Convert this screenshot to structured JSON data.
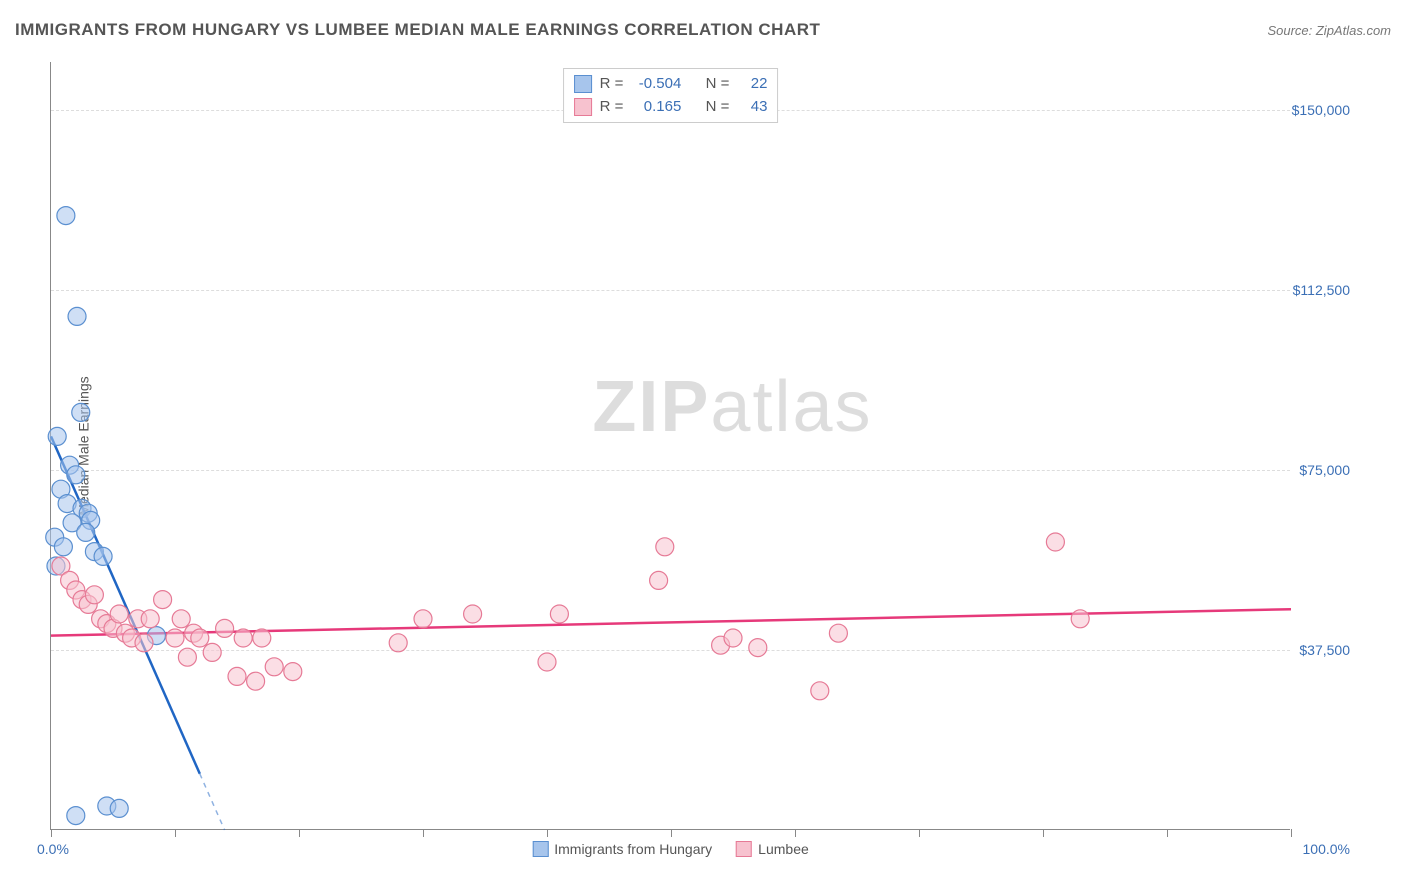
{
  "title": "IMMIGRANTS FROM HUNGARY VS LUMBEE MEDIAN MALE EARNINGS CORRELATION CHART",
  "source_label": "Source: ZipAtlas.com",
  "ylabel": "Median Male Earnings",
  "watermark": {
    "bold": "ZIP",
    "rest": "atlas"
  },
  "chart": {
    "type": "scatter",
    "xlim": [
      0,
      100
    ],
    "ylim": [
      0,
      160000
    ],
    "x_tick_step_pct": 10,
    "x_left_label": "0.0%",
    "x_right_label": "100.0%",
    "gridlines_y": [
      37500,
      75000,
      112500,
      150000
    ],
    "y_tick_labels": [
      "$37,500",
      "$75,000",
      "$112,500",
      "$150,000"
    ],
    "background_color": "#ffffff",
    "grid_color": "#dddddd",
    "axis_color": "#888888",
    "text_color": "#555555",
    "value_color": "#3b6fb5",
    "marker_radius": 9,
    "marker_opacity": 0.55,
    "line_width": 2.5,
    "series": [
      {
        "name": "Immigrants from Hungary",
        "color_fill": "#a7c5ec",
        "color_stroke": "#5a8fd0",
        "line_color": "#2066c4",
        "R": "-0.504",
        "N": "22",
        "trend": {
          "x1": 0,
          "y1": 82000,
          "x2": 14,
          "y2": 0,
          "dash_beyond_x": 12
        },
        "points": [
          {
            "x": 1.2,
            "y": 128000
          },
          {
            "x": 2.1,
            "y": 107000
          },
          {
            "x": 2.4,
            "y": 87000
          },
          {
            "x": 0.5,
            "y": 82000
          },
          {
            "x": 1.5,
            "y": 76000
          },
          {
            "x": 2.0,
            "y": 74000
          },
          {
            "x": 0.8,
            "y": 71000
          },
          {
            "x": 1.3,
            "y": 68000
          },
          {
            "x": 2.5,
            "y": 67000
          },
          {
            "x": 3.0,
            "y": 66000
          },
          {
            "x": 1.7,
            "y": 64000
          },
          {
            "x": 3.2,
            "y": 64500
          },
          {
            "x": 0.3,
            "y": 61000
          },
          {
            "x": 2.8,
            "y": 62000
          },
          {
            "x": 1.0,
            "y": 59000
          },
          {
            "x": 3.5,
            "y": 58000
          },
          {
            "x": 0.4,
            "y": 55000
          },
          {
            "x": 4.2,
            "y": 57000
          },
          {
            "x": 8.5,
            "y": 40500
          },
          {
            "x": 2.0,
            "y": 3000
          },
          {
            "x": 4.5,
            "y": 5000
          },
          {
            "x": 5.5,
            "y": 4500
          }
        ]
      },
      {
        "name": "Lumbee",
        "color_fill": "#f7c2cf",
        "color_stroke": "#e67a96",
        "line_color": "#e6397a",
        "R": "0.165",
        "N": "43",
        "trend": {
          "x1": 0,
          "y1": 40500,
          "x2": 100,
          "y2": 46000
        },
        "points": [
          {
            "x": 0.8,
            "y": 55000
          },
          {
            "x": 1.5,
            "y": 52000
          },
          {
            "x": 2.0,
            "y": 50000
          },
          {
            "x": 2.5,
            "y": 48000
          },
          {
            "x": 3.0,
            "y": 47000
          },
          {
            "x": 3.5,
            "y": 49000
          },
          {
            "x": 4.0,
            "y": 44000
          },
          {
            "x": 4.5,
            "y": 43000
          },
          {
            "x": 5.0,
            "y": 42000
          },
          {
            "x": 5.5,
            "y": 45000
          },
          {
            "x": 6.0,
            "y": 41000
          },
          {
            "x": 6.5,
            "y": 40000
          },
          {
            "x": 7.0,
            "y": 44000
          },
          {
            "x": 7.5,
            "y": 39000
          },
          {
            "x": 8.0,
            "y": 44000
          },
          {
            "x": 9.0,
            "y": 48000
          },
          {
            "x": 10.0,
            "y": 40000
          },
          {
            "x": 10.5,
            "y": 44000
          },
          {
            "x": 11.0,
            "y": 36000
          },
          {
            "x": 11.5,
            "y": 41000
          },
          {
            "x": 12.0,
            "y": 40000
          },
          {
            "x": 13.0,
            "y": 37000
          },
          {
            "x": 14.0,
            "y": 42000
          },
          {
            "x": 15.0,
            "y": 32000
          },
          {
            "x": 15.5,
            "y": 40000
          },
          {
            "x": 16.5,
            "y": 31000
          },
          {
            "x": 17.0,
            "y": 40000
          },
          {
            "x": 18.0,
            "y": 34000
          },
          {
            "x": 19.5,
            "y": 33000
          },
          {
            "x": 28.0,
            "y": 39000
          },
          {
            "x": 30.0,
            "y": 44000
          },
          {
            "x": 34.0,
            "y": 45000
          },
          {
            "x": 40.0,
            "y": 35000
          },
          {
            "x": 41.0,
            "y": 45000
          },
          {
            "x": 49.0,
            "y": 52000
          },
          {
            "x": 49.5,
            "y": 59000
          },
          {
            "x": 54.0,
            "y": 38500
          },
          {
            "x": 55.0,
            "y": 40000
          },
          {
            "x": 57.0,
            "y": 38000
          },
          {
            "x": 62.0,
            "y": 29000
          },
          {
            "x": 63.5,
            "y": 41000
          },
          {
            "x": 81.0,
            "y": 60000
          },
          {
            "x": 83.0,
            "y": 44000
          }
        ]
      }
    ],
    "bottom_legend": [
      {
        "label": "Immigrants from Hungary",
        "fill": "#a7c5ec",
        "stroke": "#5a8fd0"
      },
      {
        "label": "Lumbee",
        "fill": "#f7c2cf",
        "stroke": "#e67a96"
      }
    ]
  }
}
